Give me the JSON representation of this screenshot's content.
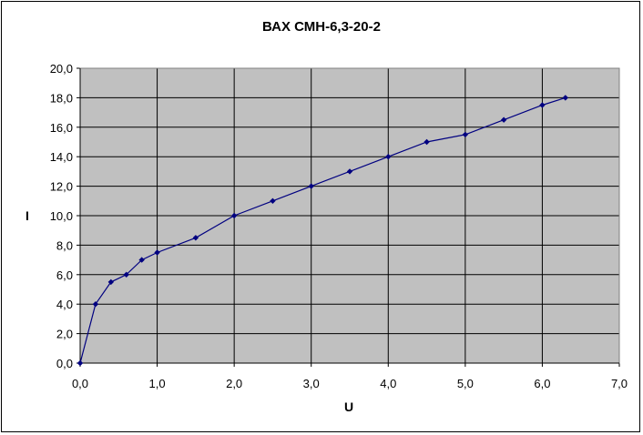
{
  "chart_data": {
    "type": "line",
    "title": "ВАХ СМН-6,3-20-2",
    "xlabel": "U",
    "ylabel": "I",
    "xlim": [
      0,
      7
    ],
    "ylim": [
      0,
      20
    ],
    "x_ticks": [
      "0,0",
      "1,0",
      "2,0",
      "3,0",
      "4,0",
      "5,0",
      "6,0",
      "7,0"
    ],
    "y_ticks": [
      "0,0",
      "2,0",
      "4,0",
      "6,0",
      "8,0",
      "10,0",
      "12,0",
      "14,0",
      "16,0",
      "18,0",
      "20,0"
    ],
    "grid": true,
    "legend": "none",
    "series": [
      {
        "x": [
          0,
          0.2,
          0.4,
          0.6,
          0.8,
          1.0,
          1.5,
          2.0,
          2.5,
          3.0,
          3.5,
          4.0,
          4.5,
          5.0,
          5.5,
          6.0,
          6.3
        ],
        "y": [
          0,
          4.0,
          5.5,
          6.0,
          7.0,
          7.5,
          8.5,
          10.0,
          11.0,
          12.0,
          13.0,
          14.0,
          15.0,
          15.5,
          16.5,
          17.5,
          18.0
        ]
      }
    ],
    "colors": {
      "plot_area": "#c0c0c0",
      "series": "#000080",
      "grid": "#000000"
    }
  }
}
